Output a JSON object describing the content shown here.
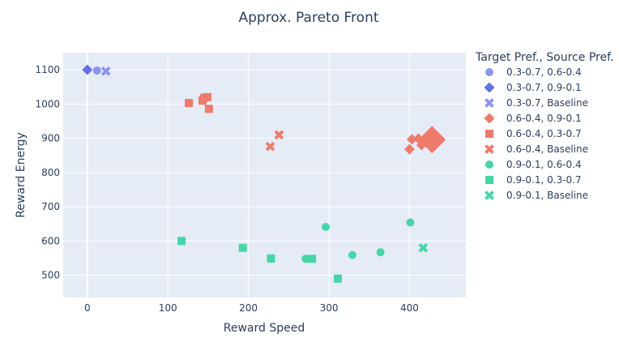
{
  "chart_data": {
    "type": "scatter",
    "title": "Approx. Pareto Front",
    "xlabel": "Reward Speed",
    "ylabel": "Reward Energy",
    "xlim": [
      -30,
      470
    ],
    "ylim": [
      435,
      1150
    ],
    "xticks": [
      0,
      100,
      200,
      300,
      400
    ],
    "yticks": [
      500,
      600,
      700,
      800,
      900,
      1000,
      1100
    ],
    "grid": true,
    "legend_title": "Target Pref., Source Pref.",
    "legend_position": "right",
    "series": [
      {
        "name": "0.3-0.7, 0.6-0.4",
        "color": "#8b94f0",
        "symbol": "circle",
        "points": [
          [
            12,
            1098
          ]
        ]
      },
      {
        "name": "0.3-0.7, 0.9-0.1",
        "color": "#6670e8",
        "symbol": "diamond",
        "points": [
          [
            0,
            1100
          ]
        ]
      },
      {
        "name": "0.3-0.7, Baseline",
        "color": "#8b94f0",
        "symbol": "x",
        "points": [
          [
            23,
            1096
          ]
        ]
      },
      {
        "name": "0.6-0.4, 0.9-0.1",
        "color": "#ef7a6a",
        "symbol": "diamond",
        "points": [
          [
            400,
            868
          ],
          [
            403,
            897
          ],
          [
            411,
            899
          ],
          [
            415,
            880
          ],
          [
            428,
            896,
            "big"
          ]
        ]
      },
      {
        "name": "0.6-0.4, 0.3-0.7",
        "color": "#ef7a6a",
        "symbol": "square",
        "points": [
          [
            126,
            1003
          ],
          [
            143,
            1010
          ],
          [
            145,
            1018
          ],
          [
            149,
            1020
          ],
          [
            151,
            986
          ]
        ]
      },
      {
        "name": "0.6-0.4, Baseline",
        "color": "#ef7a6a",
        "symbol": "x",
        "points": [
          [
            227,
            876
          ],
          [
            238,
            910
          ]
        ]
      },
      {
        "name": "0.9-0.1, 0.6-0.4",
        "color": "#45d6a8",
        "symbol": "circle",
        "points": [
          [
            271,
            548
          ],
          [
            296,
            641
          ],
          [
            329,
            559
          ],
          [
            364,
            567
          ],
          [
            401,
            654
          ]
        ]
      },
      {
        "name": "0.9-0.1, 0.3-0.7",
        "color": "#45d6a8",
        "symbol": "square",
        "points": [
          [
            117,
            600
          ],
          [
            193,
            580
          ],
          [
            228,
            549
          ],
          [
            279,
            548
          ],
          [
            311,
            490
          ]
        ]
      },
      {
        "name": "0.9-0.1, Baseline",
        "color": "#45d6a8",
        "symbol": "x",
        "points": [
          [
            417,
            580
          ]
        ]
      }
    ]
  }
}
